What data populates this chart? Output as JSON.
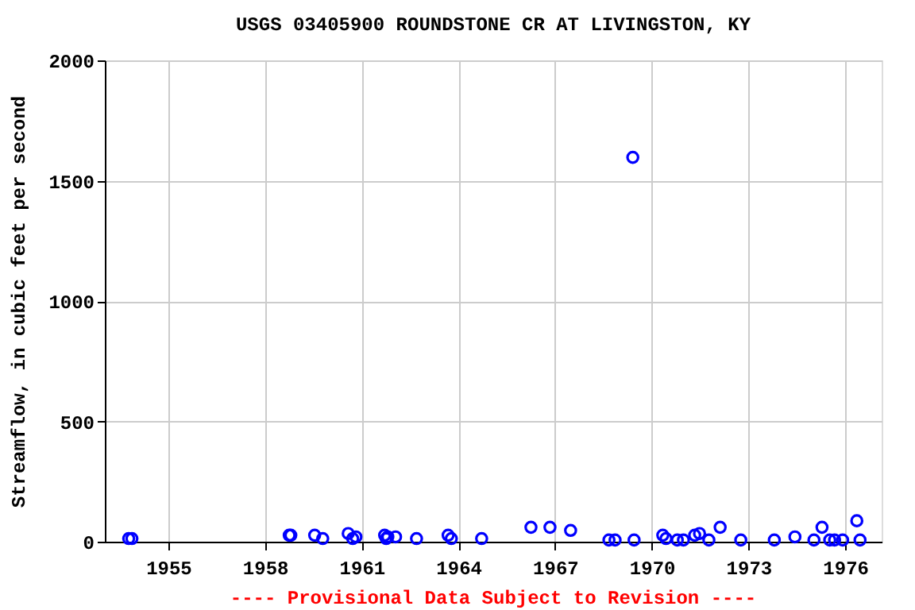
{
  "chart_data": {
    "type": "scatter",
    "title": "USGS 03405900 ROUNDSTONE CR AT LIVINGSTON, KY",
    "ylabel": "Streamflow, in cubic feet per second",
    "x": [
      1953.77,
      1953.87,
      1958.75,
      1958.8,
      1959.54,
      1959.79,
      1960.58,
      1960.72,
      1960.82,
      1961.71,
      1961.76,
      1961.81,
      1962.05,
      1962.7,
      1963.68,
      1963.78,
      1964.72,
      1966.25,
      1966.84,
      1967.48,
      1968.67,
      1968.86,
      1969.41,
      1969.45,
      1970.34,
      1970.44,
      1970.79,
      1970.98,
      1971.33,
      1971.48,
      1971.77,
      1972.12,
      1972.76,
      1973.8,
      1974.44,
      1975.03,
      1975.28,
      1975.52,
      1975.67,
      1975.92,
      1976.36,
      1976.46
    ],
    "series": [
      {
        "color": "#0000ff",
        "values": [
          13,
          13,
          27,
          27,
          27,
          13,
          34,
          13,
          20,
          27,
          13,
          20,
          20,
          13,
          27,
          13,
          13,
          60,
          60,
          47,
          7,
          7,
          1597,
          7,
          27,
          13,
          7,
          7,
          27,
          34,
          7,
          60,
          7,
          7,
          20,
          7,
          60,
          7,
          7,
          7,
          87,
          7
        ]
      }
    ],
    "xlim": [
      1953.03,
      1977.13
    ],
    "xticks": [
      1955,
      1958,
      1961,
      1964,
      1967,
      1970,
      1973,
      1976
    ],
    "ylim": [
      0,
      2000
    ],
    "yticks": [
      0,
      500,
      1000,
      1500,
      2000
    ],
    "grid": true,
    "marker": "circle",
    "annotations": [
      "---- Provisional Data Subject to Revision ----"
    ]
  }
}
